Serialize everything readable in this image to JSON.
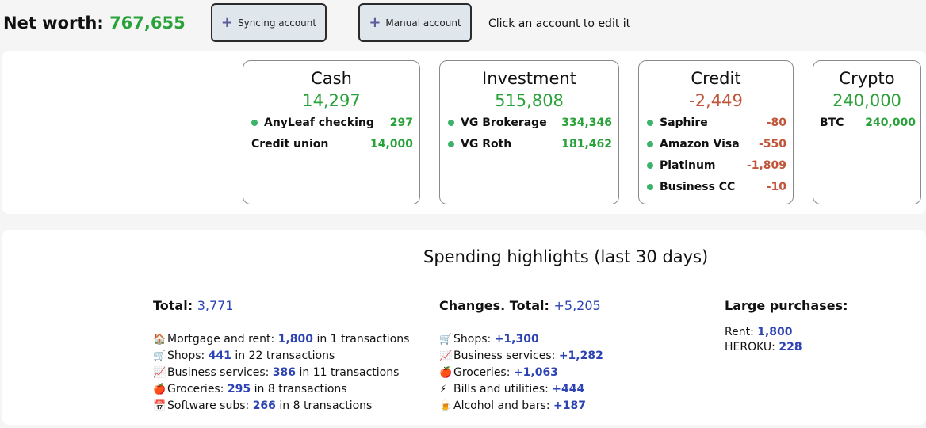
{
  "header": {
    "net_worth_label": "Net worth:",
    "net_worth_value": "767,655",
    "syncing_button": "Syncing account",
    "manual_button": "Manual account",
    "hint": "Click an account to edit it"
  },
  "accounts": {
    "cash": {
      "title": "Cash",
      "total": "14,297",
      "items": [
        {
          "name": "AnyLeaf checking",
          "value": "297",
          "synced": true
        },
        {
          "name": "Credit union",
          "value": "14,000",
          "synced": false
        }
      ]
    },
    "investment": {
      "title": "Investment",
      "total": "515,808",
      "items": [
        {
          "name": "VG Brokerage",
          "value": "334,346",
          "synced": true
        },
        {
          "name": "VG Roth",
          "value": "181,462",
          "synced": true
        }
      ]
    },
    "credit": {
      "title": "Credit",
      "total": "-2,449",
      "items": [
        {
          "name": "Saphire",
          "value": "-80",
          "synced": true
        },
        {
          "name": "Amazon Visa",
          "value": "-550",
          "synced": true
        },
        {
          "name": "Platinum",
          "value": "-1,809",
          "synced": true
        },
        {
          "name": "Business CC",
          "value": "-10",
          "synced": true
        }
      ]
    },
    "crypto": {
      "title": "Crypto",
      "total": "240,000",
      "items": [
        {
          "name": "BTC",
          "value": "240,000",
          "synced": false
        }
      ]
    }
  },
  "spending": {
    "title": "Spending highlights (last 30 days)",
    "total_label": "Total:",
    "total_value": "3,771",
    "categories": [
      {
        "icon": "🏠",
        "name": "Mortgage and rent:",
        "amount": "1,800",
        "in": "in",
        "count": "1",
        "unit": "transactions"
      },
      {
        "icon": "🛒",
        "name": "Shops:",
        "amount": "441",
        "in": "in",
        "count": "22",
        "unit": "transactions"
      },
      {
        "icon": "📈",
        "name": "Business services:",
        "amount": "386",
        "in": "in",
        "count": "11",
        "unit": "transactions"
      },
      {
        "icon": "🍎",
        "name": "Groceries:",
        "amount": "295",
        "in": "in",
        "count": "8",
        "unit": "transactions"
      },
      {
        "icon": "📅",
        "name": "Software subs:",
        "amount": "266",
        "in": "in",
        "count": "8",
        "unit": "transactions"
      }
    ],
    "changes_label": "Changes. Total:",
    "changes_value": "+5,205",
    "changes": [
      {
        "icon": "🛒",
        "name": "Shops:",
        "amount": "+1,300"
      },
      {
        "icon": "📈",
        "name": "Business services:",
        "amount": "+1,282"
      },
      {
        "icon": "🍎",
        "name": "Groceries:",
        "amount": "+1,063"
      },
      {
        "icon": "⚡",
        "name": "Bills and utilities:",
        "amount": "+444"
      },
      {
        "icon": "🍺",
        "name": "Alcohol and bars:",
        "amount": "+187"
      }
    ],
    "large_label": "Large purchases:",
    "large": [
      {
        "name": "Rent:",
        "amount": "1,800"
      },
      {
        "name": "HEROKU:",
        "amount": "228"
      }
    ]
  },
  "colors": {
    "positive": "#2aa23a",
    "negative": "#c0553a",
    "highlight": "#2d43b3",
    "sync_dot": "#3bb36b"
  }
}
